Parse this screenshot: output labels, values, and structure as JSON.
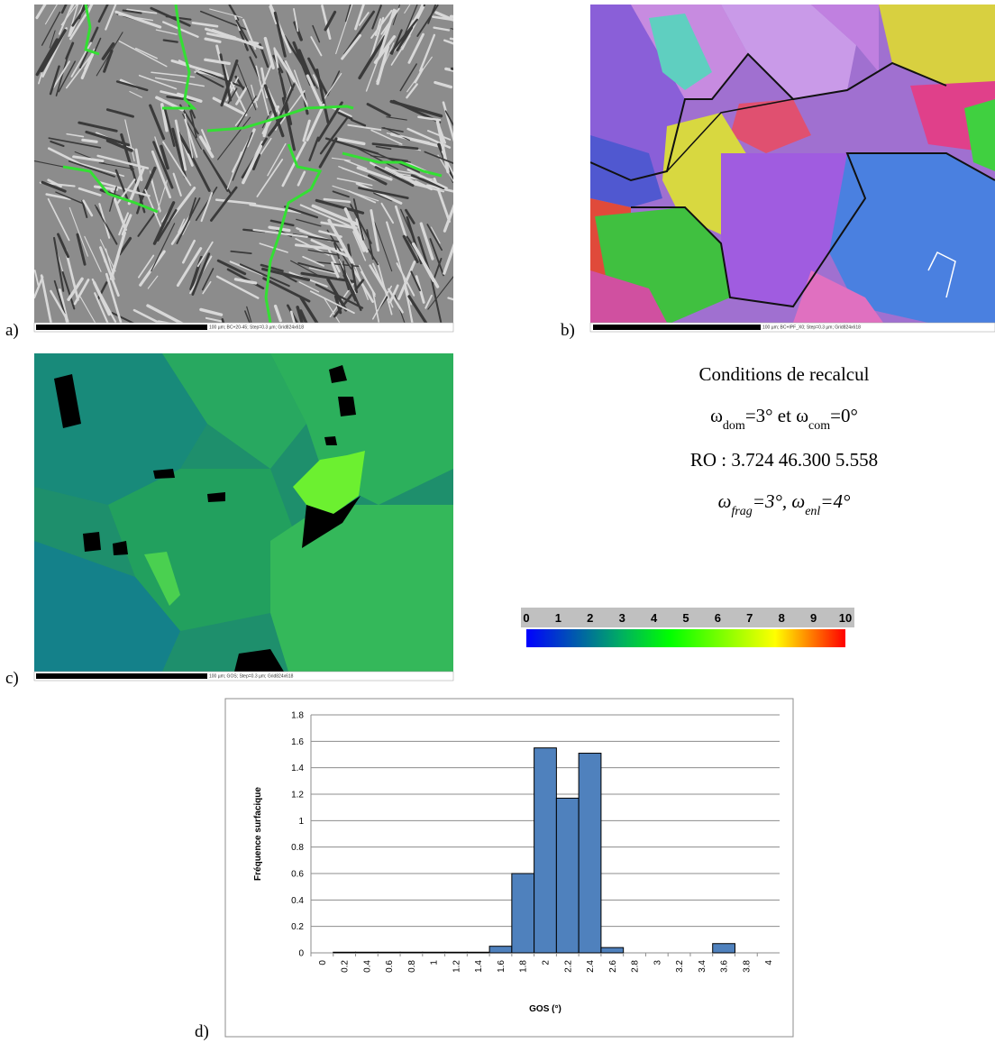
{
  "panels": {
    "a": {
      "label": "a)",
      "scale_text": "100 µm; BC+20-45; Step=0.3 µm; Grid824x618"
    },
    "b": {
      "label": "b)",
      "scale_text": "100 µm; BC+IPF_X0; Step=0.3 µm; Grid824x618"
    },
    "c": {
      "label": "c)",
      "scale_text": "100 µm; GOS; Step=0.3 µm; Grid824x618"
    },
    "d": {
      "label": "d)"
    }
  },
  "conditions": {
    "title": "Conditions de recalcul",
    "line2": [
      "ω",
      "dom",
      "=3° et ω",
      "com",
      "=0°"
    ],
    "line3": "RO : 3.724 46.300 5.558",
    "line4": [
      "ω",
      "frag",
      "=3°, ω",
      "enl",
      "=4°"
    ]
  },
  "colorbar": {
    "ticks": [
      0,
      1,
      2,
      3,
      4,
      5,
      6,
      7,
      8,
      9,
      10
    ]
  },
  "chart_data": {
    "type": "bar",
    "x_label": "GOS (°)",
    "y_label": "Fréquence surfacique",
    "categories": [
      "0",
      "0.2",
      "0.4",
      "0.6",
      "0.8",
      "1",
      "1.2",
      "1.4",
      "1.6",
      "1.8",
      "2",
      "2.2",
      "2.4",
      "2.6",
      "2.8",
      "3",
      "3.2",
      "3.4",
      "3.6",
      "3.8",
      "4"
    ],
    "values": [
      0,
      0.005,
      0.005,
      0.005,
      0.005,
      0.005,
      0.005,
      0.005,
      0.05,
      0.6,
      1.55,
      1.17,
      1.51,
      0.04,
      0,
      0,
      0,
      0,
      0.07,
      0,
      0
    ],
    "color": "#4f81bd",
    "ylim": [
      0,
      1.8
    ],
    "yticks": [
      0,
      0.2,
      0.4,
      0.6,
      0.8,
      1,
      1.2,
      1.4,
      1.6,
      1.8
    ],
    "grid": true
  }
}
